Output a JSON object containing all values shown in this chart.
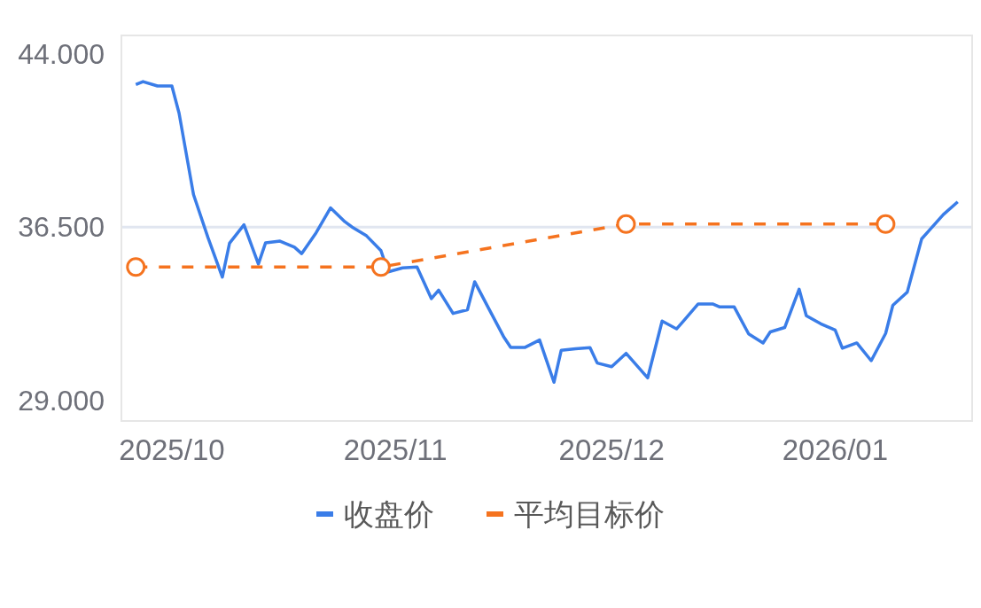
{
  "chart_data": {
    "type": "line",
    "x": [
      "2025-09-26",
      "2025-09-27",
      "2025-09-29",
      "2025-10-01",
      "2025-10-02",
      "2025-10-04",
      "2025-10-06",
      "2025-10-08",
      "2025-10-09",
      "2025-10-11",
      "2025-10-13",
      "2025-10-14",
      "2025-10-16",
      "2025-10-18",
      "2025-10-19",
      "2025-10-21",
      "2025-10-23",
      "2025-10-25",
      "2025-10-26",
      "2025-10-28",
      "2025-10-30",
      "2025-10-31",
      "2025-11-02",
      "2025-11-04",
      "2025-11-06",
      "2025-11-07",
      "2025-11-09",
      "2025-11-11",
      "2025-11-12",
      "2025-11-14",
      "2025-11-16",
      "2025-11-17",
      "2025-11-19",
      "2025-11-21",
      "2025-11-23",
      "2025-11-24",
      "2025-11-26",
      "2025-11-28",
      "2025-11-29",
      "2025-12-01",
      "2025-12-03",
      "2025-12-04",
      "2025-12-06",
      "2025-12-08",
      "2025-12-10",
      "2025-12-11",
      "2025-12-13",
      "2025-12-15",
      "2025-12-16",
      "2025-12-18",
      "2025-12-20",
      "2025-12-22",
      "2025-12-23",
      "2025-12-25",
      "2025-12-27",
      "2025-12-28",
      "2025-12-30",
      "2026-01-01",
      "2026-01-02",
      "2026-01-04",
      "2026-01-06",
      "2026-01-08",
      "2026-01-09",
      "2026-01-11",
      "2026-01-13",
      "2026-01-14",
      "2026-01-16",
      "2026-01-18"
    ],
    "series": [
      {
        "name": "收盘价",
        "color": "#3a7de8",
        "values": [
          42.67,
          42.8,
          42.61,
          42.61,
          41.43,
          37.91,
          36.05,
          34.33,
          35.8,
          36.6,
          34.9,
          35.82,
          35.89,
          35.63,
          35.35,
          36.25,
          37.33,
          36.73,
          36.5,
          36.12,
          35.48,
          34.56,
          34.73,
          34.77,
          33.4,
          33.77,
          32.76,
          32.92,
          34.13,
          32.94,
          31.76,
          31.29,
          31.29,
          31.61,
          29.78,
          31.16,
          31.23,
          31.28,
          30.61,
          30.45,
          31.03,
          30.68,
          29.97,
          32.43,
          32.09,
          32.44,
          33.17,
          33.17,
          33.04,
          33.04,
          31.87,
          31.48,
          31.96,
          32.15,
          33.81,
          32.66,
          32.31,
          32.04,
          31.25,
          31.48,
          30.71,
          31.89,
          33.11,
          33.68,
          35.99,
          36.34,
          37.04,
          37.59
        ]
      },
      {
        "name": "平均目标价",
        "color": "#f5731f",
        "x": [
          "2025-09-26",
          "2025-10-30",
          "2025-12-03",
          "2026-01-08"
        ],
        "values": [
          34.77,
          34.77,
          36.63,
          36.63
        ],
        "marker": "circle",
        "line_style": "dashed"
      }
    ],
    "xlim": [
      "2025-09-24",
      "2026-01-20"
    ],
    "xticks": [
      {
        "value": "2025-10-01",
        "label": "2025/10"
      },
      {
        "value": "2025-11-01",
        "label": "2025/11"
      },
      {
        "value": "2025-12-01",
        "label": "2025/12"
      },
      {
        "value": "2026-01-01",
        "label": "2026/01"
      }
    ],
    "ylim": [
      28.1,
      44.8
    ],
    "yticks": [
      {
        "value": 29,
        "label": "29.000"
      },
      {
        "value": 36.5,
        "label": "36.500"
      },
      {
        "value": 44,
        "label": "44.000"
      }
    ],
    "ref_lines": [
      {
        "axis": "y",
        "value": 36.5,
        "color": "#e1e6f0"
      }
    ],
    "legend": "bottom"
  }
}
